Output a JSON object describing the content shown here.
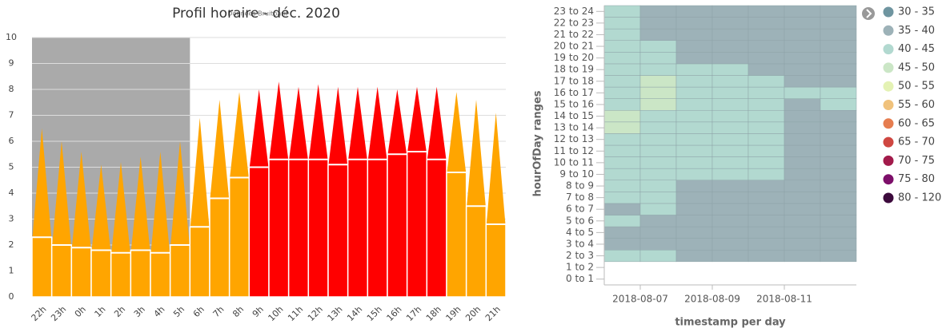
{
  "chart_data": [
    {
      "type": "bar",
      "title": "Profil horaire - déc. 2020",
      "credit": "Données Bruitparif",
      "categories": [
        "22h",
        "23h",
        "0h",
        "1h",
        "2h",
        "3h",
        "4h",
        "5h",
        "6h",
        "7h",
        "8h",
        "9h",
        "10h",
        "11h",
        "12h",
        "13h",
        "14h",
        "15h",
        "16h",
        "17h",
        "18h",
        "19h",
        "20h",
        "21h"
      ],
      "values": [
        2.3,
        2.0,
        1.9,
        1.8,
        1.7,
        1.8,
        1.7,
        2.0,
        2.7,
        3.8,
        4.6,
        5.0,
        5.3,
        5.3,
        5.3,
        5.1,
        5.3,
        5.3,
        5.5,
        5.6,
        5.3,
        4.8,
        3.5,
        2.8
      ],
      "peak_values": [
        6.5,
        6.0,
        5.6,
        5.1,
        5.2,
        5.4,
        5.6,
        6.0,
        6.9,
        7.6,
        7.9,
        8.0,
        8.3,
        8.1,
        8.2,
        8.1,
        8.1,
        8.1,
        8.0,
        8.1,
        8.1,
        7.9,
        7.6,
        7.1
      ],
      "colors": [
        "#ffa500",
        "#ffa500",
        "#ffa500",
        "#ffa500",
        "#ffa500",
        "#ffa500",
        "#ffa500",
        "#ffa500",
        "#ffa500",
        "#ffa500",
        "#ffa500",
        "#ff0000",
        "#ff0000",
        "#ff0000",
        "#ff0000",
        "#ff0000",
        "#ff0000",
        "#ff0000",
        "#ff0000",
        "#ff0000",
        "#ff0000",
        "#ffa500",
        "#ffa500",
        "#ffa500"
      ],
      "night_band": {
        "from": "22h",
        "to": "5h",
        "color": "#aaaaaa"
      },
      "ylim": [
        0,
        10
      ],
      "yticks": [
        0,
        1,
        2,
        3,
        4,
        5,
        6,
        7,
        8,
        9,
        10
      ],
      "grid": true
    },
    {
      "type": "heatmap",
      "x_label": "timestamp per day",
      "y_label": "hourOfDay ranges",
      "x": [
        null,
        "2018-08-07",
        null,
        "2018-08-09",
        null,
        "2018-08-11",
        null
      ],
      "y": [
        "0 to 1",
        "1 to 2",
        "2 to 3",
        "3 to 4",
        "4 to 5",
        "5 to 6",
        "6 to 7",
        "7 to 8",
        "8 to 9",
        "9 to 10",
        "10 to 11",
        "11 to 12",
        "12 to 13",
        "13 to 14",
        "14 to 15",
        "15 to 16",
        "16 to 17",
        "17 to 18",
        "18 to 19",
        "19 to 20",
        "20 to 21",
        "21 to 22",
        "22 to 23",
        "23 to 24"
      ],
      "values": [
        [
          null,
          null,
          null,
          null,
          null,
          null,
          null
        ],
        [
          null,
          null,
          null,
          null,
          null,
          null,
          null
        ],
        [
          42.5,
          42.5,
          37.5,
          37.5,
          37.5,
          37.5,
          37.5
        ],
        [
          37.5,
          37.5,
          37.5,
          37.5,
          37.5,
          37.5,
          37.5
        ],
        [
          37.5,
          37.5,
          37.5,
          37.5,
          37.5,
          37.5,
          37.5
        ],
        [
          42.5,
          37.5,
          37.5,
          37.5,
          37.5,
          37.5,
          37.5
        ],
        [
          37.5,
          42.5,
          37.5,
          37.5,
          37.5,
          37.5,
          37.5
        ],
        [
          42.5,
          42.5,
          37.5,
          37.5,
          37.5,
          37.5,
          37.5
        ],
        [
          42.5,
          42.5,
          37.5,
          37.5,
          37.5,
          37.5,
          37.5
        ],
        [
          42.5,
          42.5,
          42.5,
          42.5,
          42.5,
          37.5,
          37.5
        ],
        [
          42.5,
          42.5,
          42.5,
          42.5,
          42.5,
          37.5,
          37.5
        ],
        [
          42.5,
          42.5,
          42.5,
          42.5,
          42.5,
          37.5,
          37.5
        ],
        [
          42.5,
          42.5,
          42.5,
          42.5,
          42.5,
          37.5,
          37.5
        ],
        [
          47.5,
          42.5,
          42.5,
          42.5,
          42.5,
          37.5,
          37.5
        ],
        [
          47.5,
          42.5,
          42.5,
          42.5,
          42.5,
          37.5,
          37.5
        ],
        [
          42.5,
          47.5,
          42.5,
          42.5,
          42.5,
          37.5,
          42.5
        ],
        [
          42.5,
          47.5,
          42.5,
          42.5,
          42.5,
          42.5,
          42.5
        ],
        [
          42.5,
          47.5,
          42.5,
          42.5,
          42.5,
          37.5,
          37.5
        ],
        [
          42.5,
          42.5,
          42.5,
          42.5,
          37.5,
          37.5,
          37.5
        ],
        [
          42.5,
          42.5,
          37.5,
          37.5,
          37.5,
          37.5,
          37.5
        ],
        [
          42.5,
          42.5,
          37.5,
          37.5,
          37.5,
          37.5,
          37.5
        ],
        [
          42.5,
          37.5,
          37.5,
          37.5,
          37.5,
          37.5,
          37.5
        ],
        [
          42.5,
          37.5,
          37.5,
          37.5,
          37.5,
          37.5,
          37.5
        ],
        [
          42.5,
          37.5,
          37.5,
          37.5,
          37.5,
          37.5,
          37.5
        ]
      ],
      "legend": [
        {
          "label": "30 - 35",
          "from": 30,
          "to": 35,
          "color": "#6f95a0"
        },
        {
          "label": "35 - 40",
          "from": 35,
          "to": 40,
          "color": "#9db2b8"
        },
        {
          "label": "40 - 45",
          "from": 40,
          "to": 45,
          "color": "#b2d9d0"
        },
        {
          "label": "45 - 50",
          "from": 45,
          "to": 50,
          "color": "#cbe6c6"
        },
        {
          "label": "50 - 55",
          "from": 50,
          "to": 55,
          "color": "#e4f2b4"
        },
        {
          "label": "55 - 60",
          "from": 55,
          "to": 60,
          "color": "#f0c27c"
        },
        {
          "label": "60 - 65",
          "from": 60,
          "to": 65,
          "color": "#e67d4f"
        },
        {
          "label": "65 - 70",
          "from": 65,
          "to": 70,
          "color": "#cf4741"
        },
        {
          "label": "70 - 75",
          "from": 70,
          "to": 75,
          "color": "#a21b4b"
        },
        {
          "label": "75 - 80",
          "from": 75,
          "to": 80,
          "color": "#7d0f6a"
        },
        {
          "label": "80 - 120",
          "from": 80,
          "to": 120,
          "color": "#3c0a3c"
        }
      ]
    }
  ]
}
